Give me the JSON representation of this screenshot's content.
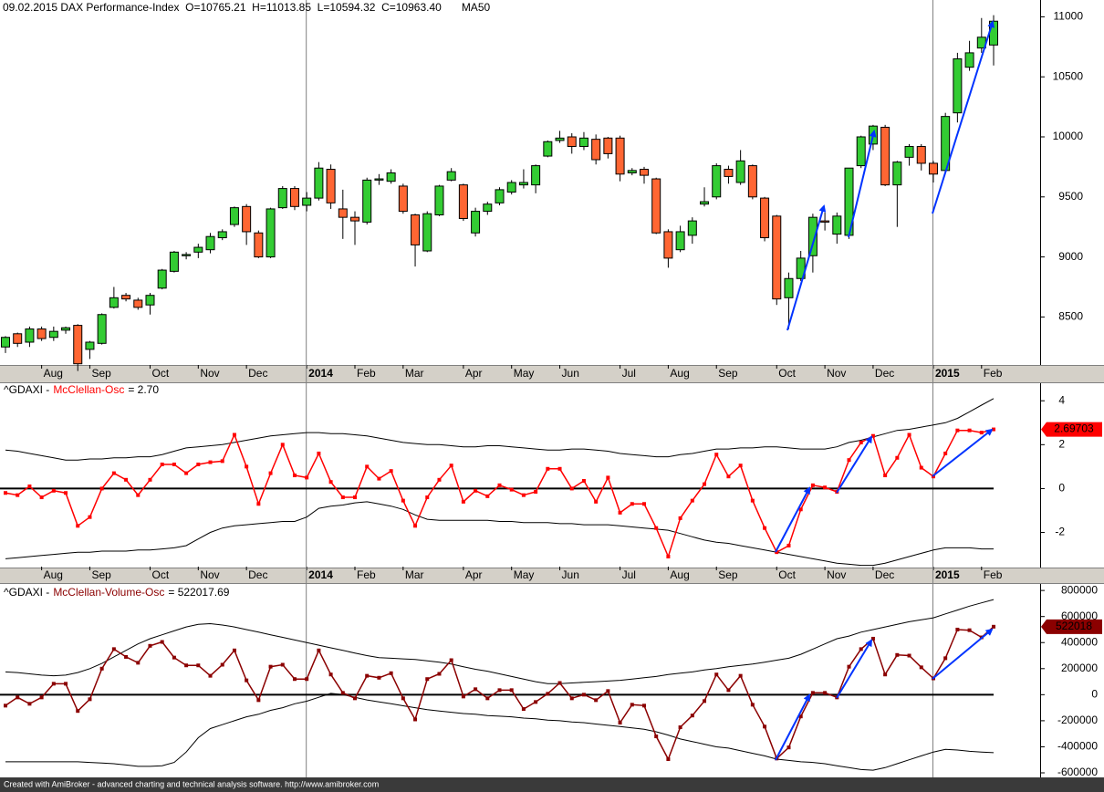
{
  "chart_data": [
    {
      "type": "candlestick",
      "title": "09.02.2015 DAX Performance-Index  O=10765.21  H=11013.85  L=10594.32  C=10963.40",
      "indicator": "MA50",
      "xticks": [
        {
          "value": 3,
          "label": "Aug"
        },
        {
          "value": 7,
          "label": "Sep"
        },
        {
          "value": 12,
          "label": "Oct"
        },
        {
          "value": 16,
          "label": "Nov"
        },
        {
          "value": 20,
          "label": "Dec"
        },
        {
          "value": 25,
          "label": "2014"
        },
        {
          "value": 29,
          "label": "Feb"
        },
        {
          "value": 33,
          "label": "Mar"
        },
        {
          "value": 38,
          "label": "Apr"
        },
        {
          "value": 42,
          "label": "May"
        },
        {
          "value": 46,
          "label": "Jun"
        },
        {
          "value": 51,
          "label": "Jul"
        },
        {
          "value": 55,
          "label": "Aug"
        },
        {
          "value": 59,
          "label": "Sep"
        },
        {
          "value": 64,
          "label": "Oct"
        },
        {
          "value": 68,
          "label": "Nov"
        },
        {
          "value": 72,
          "label": "Dec"
        },
        {
          "value": 77,
          "label": "2015"
        },
        {
          "value": 81,
          "label": "Feb"
        }
      ],
      "open": [
        8250,
        8360,
        8290,
        8400,
        8330,
        8390,
        8430,
        8230,
        8280,
        8580,
        8680,
        8640,
        8600,
        8740,
        8880,
        9010,
        9040,
        9060,
        9160,
        9270,
        9420,
        9200,
        9000,
        9410,
        9570,
        9430,
        9490,
        9730,
        9400,
        9330,
        9290,
        9640,
        9630,
        9590,
        9350,
        9050,
        9350,
        9640,
        9600,
        9200,
        9380,
        9450,
        9540,
        9600,
        9600,
        9840,
        9970,
        10000,
        9920,
        9980,
        9990,
        9990,
        9700,
        9730,
        9650,
        9210,
        9060,
        9180,
        9440,
        9500,
        9730,
        9620,
        9760,
        9490,
        9340,
        8660,
        8820,
        9010,
        9300,
        9190,
        9180,
        9760,
        9940,
        10080,
        9600,
        9830,
        9920,
        9780,
        9720,
        10200,
        10580,
        10740,
        10765.21
      ],
      "high": [
        8340,
        8370,
        8420,
        8420,
        8420,
        8420,
        8440,
        8300,
        8530,
        8750,
        8700,
        8660,
        8700,
        8900,
        9050,
        9040,
        9110,
        9200,
        9230,
        9420,
        9440,
        9220,
        9410,
        9590,
        9590,
        9540,
        9790,
        9770,
        9560,
        9380,
        9660,
        9690,
        9730,
        9610,
        9360,
        9380,
        9600,
        9740,
        9610,
        9410,
        9460,
        9580,
        9640,
        9730,
        9770,
        9970,
        10050,
        10030,
        10040,
        10020,
        10000,
        10010,
        9740,
        9750,
        9660,
        9230,
        9260,
        9330,
        9580,
        9780,
        9760,
        9890,
        9770,
        9500,
        9350,
        8870,
        9050,
        9360,
        9370,
        9370,
        9740,
        10010,
        10100,
        10100,
        9800,
        9940,
        9940,
        9800,
        10200,
        10700,
        10800,
        10990,
        11013.85
      ],
      "low": [
        8200,
        8250,
        8250,
        8300,
        8300,
        8360,
        8050,
        8150,
        8270,
        8570,
        8630,
        8560,
        8520,
        8730,
        8870,
        8980,
        8990,
        9030,
        9140,
        9250,
        9100,
        8990,
        8990,
        9400,
        9390,
        9380,
        9470,
        9400,
        9150,
        9100,
        9270,
        9600,
        9610,
        9360,
        8920,
        9040,
        9340,
        9630,
        9300,
        9170,
        9350,
        9430,
        9520,
        9570,
        9530,
        9830,
        9950,
        9860,
        9890,
        9770,
        9820,
        9630,
        9680,
        9610,
        9190,
        8910,
        9040,
        9110,
        9420,
        9480,
        9610,
        9600,
        9480,
        9130,
        8600,
        8400,
        8800,
        8870,
        9220,
        9110,
        9150,
        9740,
        9890,
        9590,
        9250,
        9760,
        9720,
        9620,
        9700,
        10120,
        10550,
        10700,
        10594.32
      ],
      "close": [
        8330,
        8280,
        8400,
        8320,
        8380,
        8410,
        8110,
        8290,
        8520,
        8660,
        8650,
        8580,
        8680,
        8890,
        9040,
        9020,
        9080,
        9170,
        9210,
        9410,
        9210,
        9000,
        9400,
        9570,
        9420,
        9490,
        9740,
        9450,
        9330,
        9300,
        9640,
        9650,
        9700,
        9380,
        9100,
        9360,
        9590,
        9710,
        9320,
        9380,
        9440,
        9560,
        9620,
        9620,
        9760,
        9960,
        9990,
        9920,
        9990,
        9810,
        9860,
        9690,
        9720,
        9680,
        9200,
        8990,
        9210,
        9300,
        9460,
        9760,
        9670,
        9800,
        9500,
        9160,
        8650,
        8820,
        8990,
        9330,
        9290,
        9340,
        9740,
        10000,
        10090,
        9600,
        9790,
        9920,
        9780,
        9690,
        10170,
        10650,
        10700,
        10830,
        10963.4
      ],
      "up_color": "#33cc33",
      "down_color": "#ff6633",
      "ylim": [
        8100,
        11140
      ],
      "yticks": [
        8500,
        9000,
        9500,
        10000,
        10500,
        11000
      ]
    },
    {
      "type": "line",
      "legend_prefix": "^GDAXI -",
      "legend_suffix": "= 2.70",
      "reference_line": 0,
      "series": [
        {
          "name": "McClellan-Osc",
          "color": "#ff0000",
          "values": [
            -0.2,
            -0.3,
            0.1,
            -0.4,
            -0.1,
            -0.2,
            -1.7,
            -1.3,
            0.0,
            0.7,
            0.4,
            -0.3,
            0.4,
            1.1,
            1.1,
            0.7,
            1.1,
            1.2,
            1.25,
            2.45,
            1.0,
            -0.7,
            0.7,
            2.0,
            0.6,
            0.5,
            1.6,
            0.3,
            -0.4,
            -0.4,
            1.0,
            0.45,
            0.8,
            -0.55,
            -1.7,
            -0.4,
            0.4,
            1.05,
            -0.6,
            -0.1,
            -0.35,
            0.15,
            -0.05,
            -0.3,
            -0.15,
            0.9,
            0.9,
            0.0,
            0.35,
            -0.6,
            0.5,
            -1.1,
            -0.7,
            -0.7,
            -1.8,
            -3.1,
            -1.35,
            -0.55,
            0.2,
            1.55,
            0.55,
            1.05,
            -0.55,
            -1.8,
            -2.9,
            -2.6,
            -0.95,
            0.15,
            0.05,
            -0.15,
            1.3,
            2.1,
            2.4,
            0.6,
            1.4,
            2.45,
            0.95,
            0.55,
            1.6,
            2.65,
            2.65,
            2.55,
            2.69703
          ]
        }
      ],
      "bands": {
        "color": "#000000",
        "upper": [
          1.75,
          1.7,
          1.6,
          1.5,
          1.4,
          1.3,
          1.3,
          1.35,
          1.35,
          1.4,
          1.4,
          1.45,
          1.45,
          1.55,
          1.7,
          1.85,
          1.9,
          1.95,
          2.0,
          2.1,
          2.2,
          2.3,
          2.4,
          2.45,
          2.5,
          2.55,
          2.55,
          2.5,
          2.5,
          2.45,
          2.4,
          2.3,
          2.2,
          2.1,
          2.05,
          2.0,
          2.0,
          1.95,
          1.9,
          1.9,
          1.95,
          1.95,
          1.9,
          1.85,
          1.8,
          1.75,
          1.75,
          1.8,
          1.8,
          1.75,
          1.7,
          1.6,
          1.55,
          1.5,
          1.45,
          1.45,
          1.55,
          1.6,
          1.7,
          1.8,
          1.8,
          1.85,
          1.85,
          1.9,
          1.9,
          1.85,
          1.8,
          1.8,
          1.8,
          1.9,
          2.1,
          2.2,
          2.35,
          2.5,
          2.65,
          2.7,
          2.8,
          2.9,
          3.0,
          3.2,
          3.5,
          3.8,
          4.1
        ],
        "lower": [
          -3.2,
          -3.15,
          -3.1,
          -3.05,
          -3.0,
          -2.95,
          -2.9,
          -2.9,
          -2.85,
          -2.85,
          -2.85,
          -2.8,
          -2.8,
          -2.75,
          -2.7,
          -2.6,
          -2.3,
          -2.0,
          -1.8,
          -1.7,
          -1.65,
          -1.6,
          -1.55,
          -1.5,
          -1.5,
          -1.3,
          -0.9,
          -0.8,
          -0.75,
          -0.65,
          -0.6,
          -0.7,
          -0.8,
          -0.95,
          -1.2,
          -1.4,
          -1.45,
          -1.45,
          -1.45,
          -1.45,
          -1.45,
          -1.5,
          -1.5,
          -1.55,
          -1.55,
          -1.55,
          -1.6,
          -1.6,
          -1.65,
          -1.65,
          -1.65,
          -1.7,
          -1.75,
          -1.8,
          -1.85,
          -1.9,
          -2.05,
          -2.2,
          -2.35,
          -2.45,
          -2.5,
          -2.6,
          -2.7,
          -2.8,
          -2.9,
          -3.0,
          -3.1,
          -3.2,
          -3.3,
          -3.4,
          -3.45,
          -3.5,
          -3.5,
          -3.4,
          -3.25,
          -3.1,
          -2.95,
          -2.8,
          -2.7,
          -2.7,
          -2.7,
          -2.75,
          -2.75
        ]
      },
      "ylim": [
        -3.6,
        4.8
      ],
      "yticks": [
        -2,
        0,
        2,
        4
      ]
    },
    {
      "type": "line",
      "legend_prefix": "^GDAXI -",
      "legend_suffix": "= 522017.69",
      "reference_line": 0,
      "series": [
        {
          "name": "McClellan-Volume-Osc",
          "color": "#8b0000",
          "values": [
            -84000,
            -21000,
            -70000,
            -21000,
            84000,
            84000,
            -125000,
            -35000,
            200000,
            350000,
            290000,
            245000,
            375000,
            405000,
            285000,
            225000,
            225000,
            145000,
            230000,
            340000,
            110000,
            -42000,
            215000,
            230000,
            120000,
            120000,
            340000,
            155000,
            14000,
            -28000,
            145000,
            130000,
            165000,
            -28000,
            -190000,
            120000,
            160000,
            265000,
            -14000,
            42000,
            -28000,
            35000,
            35000,
            -110000,
            -56000,
            7000,
            90000,
            -28000,
            0,
            -42000,
            28000,
            -215000,
            -77000,
            -84000,
            -320000,
            -495000,
            -250000,
            -160000,
            -49000,
            155000,
            35000,
            145000,
            -77000,
            -245000,
            -490000,
            -405000,
            -167000,
            14000,
            14000,
            -21000,
            215000,
            350000,
            430000,
            155000,
            305000,
            300000,
            210000,
            125000,
            280000,
            500000,
            495000,
            440000,
            522017.69
          ],
          "value_labels": [
            null,
            null,
            null,
            null,
            null,
            null,
            null,
            null,
            null,
            null,
            null,
            null,
            null,
            null,
            null,
            null,
            null,
            null,
            null,
            null,
            null,
            null,
            null,
            null,
            null,
            null,
            null,
            null,
            null,
            null,
            null,
            null,
            null,
            null,
            null,
            null,
            null,
            null,
            null,
            null,
            null,
            null,
            null,
            null,
            null,
            null,
            null,
            null,
            null,
            null,
            null,
            null,
            null,
            null,
            null,
            null,
            null,
            null,
            null,
            null,
            null,
            null,
            null,
            null,
            null,
            null,
            null,
            null,
            null,
            null,
            null,
            null,
            null,
            null,
            null,
            null,
            null,
            null,
            null,
            null,
            null,
            null,
            "522018"
          ]
        }
      ],
      "bands": {
        "color": "#000000",
        "upper": [
          175000,
          170000,
          160000,
          150000,
          145000,
          150000,
          170000,
          200000,
          240000,
          290000,
          340000,
          390000,
          430000,
          460000,
          490000,
          520000,
          540000,
          545000,
          535000,
          520000,
          500000,
          480000,
          460000,
          440000,
          420000,
          400000,
          380000,
          360000,
          340000,
          320000,
          300000,
          285000,
          280000,
          275000,
          270000,
          260000,
          250000,
          235000,
          215000,
          195000,
          180000,
          160000,
          140000,
          120000,
          100000,
          85000,
          85000,
          90000,
          95000,
          100000,
          105000,
          110000,
          120000,
          130000,
          140000,
          155000,
          165000,
          175000,
          190000,
          200000,
          215000,
          225000,
          235000,
          250000,
          265000,
          280000,
          310000,
          350000,
          390000,
          430000,
          450000,
          480000,
          500000,
          520000,
          540000,
          560000,
          575000,
          590000,
          620000,
          650000,
          680000,
          705000,
          730000
        ],
        "lower": [
          -515000,
          -515000,
          -515000,
          -515000,
          -515000,
          -515000,
          -515000,
          -520000,
          -525000,
          -530000,
          -540000,
          -550000,
          -550000,
          -545000,
          -520000,
          -440000,
          -330000,
          -260000,
          -230000,
          -200000,
          -170000,
          -150000,
          -120000,
          -100000,
          -70000,
          -50000,
          -20000,
          10000,
          0,
          -20000,
          -40000,
          -55000,
          -70000,
          -85000,
          -100000,
          -115000,
          -125000,
          -135000,
          -145000,
          -150000,
          -160000,
          -165000,
          -170000,
          -180000,
          -185000,
          -195000,
          -200000,
          -210000,
          -215000,
          -225000,
          -235000,
          -245000,
          -255000,
          -265000,
          -285000,
          -310000,
          -340000,
          -360000,
          -380000,
          -400000,
          -410000,
          -430000,
          -450000,
          -470000,
          -495000,
          -505000,
          -515000,
          -520000,
          -530000,
          -545000,
          -560000,
          -575000,
          -580000,
          -560000,
          -530000,
          -500000,
          -470000,
          -440000,
          -420000,
          -425000,
          -435000,
          -440000,
          -445000
        ]
      },
      "ylim": [
        -635000,
        850000
      ],
      "yticks": [
        -600000,
        -400000,
        -200000,
        0,
        200000,
        400000,
        600000,
        800000
      ]
    }
  ],
  "footer": "Created with AmiBroker - advanced charting and technical analysis software. http://www.amibroker.com"
}
